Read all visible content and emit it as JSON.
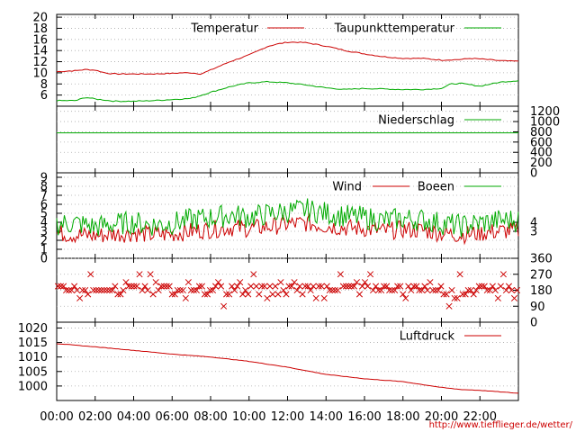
{
  "chart_data": [
    {
      "type": "line",
      "id": "temp",
      "ylim": [
        4,
        20.5
      ],
      "ticks": [
        6,
        8,
        10,
        12,
        14,
        16,
        18,
        20
      ],
      "series": [
        {
          "name": "Temperatur",
          "color": "#cc0000",
          "x": [
            0,
            1,
            1.5,
            2,
            2.5,
            3,
            4,
            5,
            6,
            6.5,
            7,
            7.5,
            8,
            9,
            10,
            10.5,
            11,
            11.5,
            12,
            12.5,
            13,
            13.5,
            14,
            14.5,
            15,
            16,
            17,
            18,
            19,
            20,
            21,
            21.5,
            22,
            23,
            23.5,
            24
          ],
          "y": [
            10.2,
            10.4,
            10.6,
            10.5,
            10.0,
            9.8,
            9.8,
            9.8,
            9.9,
            10.0,
            10.0,
            9.8,
            10.5,
            12.0,
            13.2,
            14.0,
            14.8,
            15.2,
            15.5,
            15.5,
            15.4,
            15.1,
            14.8,
            14.4,
            14.0,
            13.4,
            12.9,
            12.6,
            12.6,
            12.3,
            12.4,
            12.6,
            12.5,
            12.2,
            12.1,
            12.1
          ]
        },
        {
          "name": "Taupunkttemperatur",
          "color": "#00aa00",
          "x": [
            0,
            1,
            1.5,
            2,
            2.5,
            3,
            4,
            5,
            6,
            7,
            8,
            9,
            10,
            11,
            12,
            13,
            14,
            15,
            16,
            17,
            18,
            19,
            20,
            20.5,
            21,
            22,
            23,
            24
          ],
          "y": [
            5.0,
            5.0,
            5.6,
            5.3,
            5.1,
            4.9,
            4.9,
            5.0,
            5.2,
            5.4,
            6.5,
            7.5,
            8.2,
            8.4,
            8.2,
            7.8,
            7.3,
            7.0,
            7.2,
            7.1,
            7.0,
            7.0,
            7.2,
            8.0,
            8.1,
            7.6,
            8.3,
            8.6
          ]
        }
      ]
    },
    {
      "type": "line",
      "id": "rain",
      "ylim": [
        0,
        1300
      ],
      "ticks_right": [
        0,
        200,
        400,
        600,
        800,
        1000,
        1200
      ],
      "series": [
        {
          "name": "Niederschlag",
          "color": "#00aa00",
          "x": [
            0,
            24
          ],
          "y": [
            780,
            780
          ]
        }
      ]
    },
    {
      "type": "line",
      "id": "wind",
      "ylim": [
        0,
        9.5
      ],
      "ticks": [
        0,
        1,
        2,
        3,
        4,
        5,
        6,
        7,
        8,
        9
      ],
      "ticks_right": [
        3,
        4
      ],
      "series": [
        {
          "name": "Wind",
          "color": "#cc0000",
          "x": [
            0,
            1,
            2,
            3,
            4,
            5,
            6,
            7,
            8,
            9,
            10,
            11,
            12,
            13,
            14,
            15,
            16,
            17,
            18,
            19,
            20,
            21,
            22,
            23,
            24
          ],
          "y": [
            2.8,
            2.6,
            2.5,
            2.7,
            2.8,
            2.6,
            2.7,
            3.0,
            3.2,
            3.4,
            3.3,
            3.5,
            3.8,
            3.9,
            3.6,
            3.4,
            3.3,
            3.0,
            3.2,
            3.1,
            2.8,
            2.6,
            2.8,
            3.0,
            3.1
          ]
        },
        {
          "name": "Boeen",
          "color": "#00aa00",
          "x": [
            0,
            1,
            2,
            3,
            4,
            5,
            6,
            7,
            8,
            9,
            10,
            11,
            12,
            13,
            14,
            15,
            16,
            17,
            18,
            19,
            20,
            21,
            22,
            23,
            24
          ],
          "y": [
            3.8,
            3.9,
            3.5,
            3.8,
            4.0,
            3.7,
            3.9,
            4.3,
            4.5,
            4.8,
            4.6,
            4.9,
            5.2,
            5.4,
            5.0,
            4.7,
            4.5,
            4.2,
            4.4,
            4.3,
            3.9,
            3.6,
            3.9,
            4.2,
            4.3
          ]
        }
      ]
    },
    {
      "type": "scatter",
      "id": "direction",
      "ylim": [
        0,
        360
      ],
      "ticks_right": [
        0,
        90,
        180,
        270,
        360
      ],
      "series": [
        {
          "name": "",
          "color": "#cc0000",
          "marker": "x",
          "points_summary": "dense band of wind directions around 180, occasional values between 90 and 270"
        }
      ]
    },
    {
      "type": "line",
      "id": "pressure",
      "ylim": [
        995,
        1022
      ],
      "ticks": [
        1000,
        1005,
        1010,
        1015,
        1020
      ],
      "series": [
        {
          "name": "Luftdruck",
          "color": "#cc0000",
          "x": [
            0,
            2,
            4,
            6,
            8,
            10,
            12,
            14,
            16,
            18,
            20,
            21,
            22,
            24
          ],
          "y": [
            1014.6,
            1013.5,
            1012.3,
            1011.0,
            1010.0,
            1008.5,
            1006.5,
            1004.0,
            1002.5,
            1001.5,
            999.5,
            998.8,
            998.5,
            997.5
          ]
        }
      ]
    }
  ],
  "x_axis": {
    "min": 0,
    "max": 24,
    "tick_labels": [
      "00:00",
      "02:00",
      "04:00",
      "06:00",
      "08:00",
      "10:00",
      "12:00",
      "14:00",
      "16:00",
      "18:00",
      "20:00",
      "22:00"
    ]
  },
  "footer": {
    "url": "http://www.tiefflieger.de/wetter/"
  }
}
